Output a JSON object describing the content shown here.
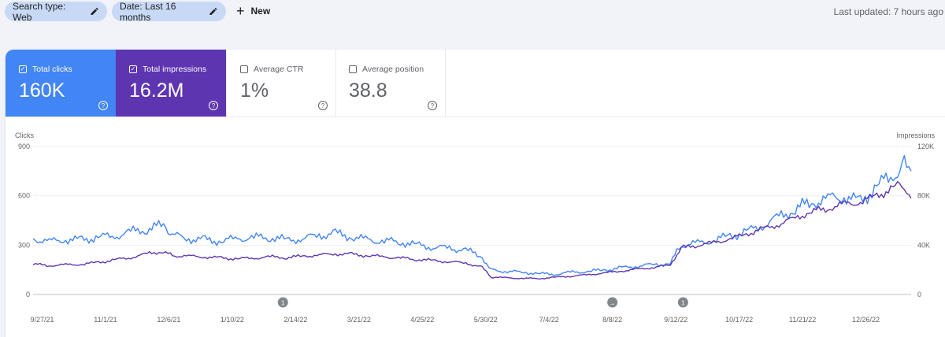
{
  "filters": {
    "search_type": "Search type: Web",
    "date": "Date: Last 16 months",
    "new": "New",
    "pencil_icon": "pencil-icon",
    "plus_icon": "plus-icon"
  },
  "last_updated": "Last updated: 7 hours ago",
  "metrics": [
    {
      "label": "Total clicks",
      "value": "160K",
      "checked": true,
      "color": "#4285f4"
    },
    {
      "label": "Total impressions",
      "value": "16.2M",
      "checked": true,
      "color": "#5e35b1"
    },
    {
      "label": "Average CTR",
      "value": "1%",
      "checked": false
    },
    {
      "label": "Average position",
      "value": "38.8",
      "checked": false
    }
  ],
  "chart_data": {
    "type": "line",
    "ylabel": "Clicks",
    "y2label": "Impressions",
    "ylim": [
      0,
      900
    ],
    "y2lim": [
      0,
      120000
    ],
    "yticks": [
      "900",
      "600",
      "300",
      "0"
    ],
    "y2ticks": [
      "120K",
      "80K",
      "40K",
      "0"
    ],
    "xticks": [
      "9/27/21",
      "11/1/21",
      "12/6/21",
      "1/10/22",
      "2/14/22",
      "3/21/22",
      "4/25/22",
      "5/30/22",
      "7/4/22",
      "8/8/22",
      "9/12/22",
      "10/17/22",
      "11/21/22",
      "12/26/22"
    ],
    "x_range": [
      "9/22/21",
      "1/20/23"
    ],
    "annotations": [
      {
        "date": "2/7/22",
        "label": "1"
      },
      {
        "date": "8/8/22",
        "label": "→"
      },
      {
        "date": "9/16/22",
        "label": "1"
      }
    ],
    "series": [
      {
        "name": "Clicks",
        "axis": "left",
        "color": "#4285f4",
        "points": [
          [
            "9/22/21",
            340
          ],
          [
            "10/1/21",
            320
          ],
          [
            "10/10/21",
            335
          ],
          [
            "10/19/21",
            330
          ],
          [
            "10/28/21",
            350
          ],
          [
            "11/6/21",
            355
          ],
          [
            "11/15/21",
            380
          ],
          [
            "11/24/21",
            400
          ],
          [
            "12/3/21",
            420
          ],
          [
            "12/8/21",
            360
          ],
          [
            "12/17/21",
            340
          ],
          [
            "12/26/21",
            330
          ],
          [
            "1/4/22",
            325
          ],
          [
            "1/13/22",
            340
          ],
          [
            "1/22/22",
            345
          ],
          [
            "1/31/22",
            350
          ],
          [
            "2/9/22",
            330
          ],
          [
            "2/18/22",
            340
          ],
          [
            "2/27/22",
            360
          ],
          [
            "3/8/22",
            370
          ],
          [
            "3/17/22",
            350
          ],
          [
            "3/26/22",
            330
          ],
          [
            "4/4/22",
            325
          ],
          [
            "4/13/22",
            320
          ],
          [
            "4/22/22",
            300
          ],
          [
            "5/1/22",
            290
          ],
          [
            "5/10/22",
            280
          ],
          [
            "5/19/22",
            270
          ],
          [
            "5/28/22",
            230
          ],
          [
            "6/2/22",
            150
          ],
          [
            "6/11/22",
            140
          ],
          [
            "6/20/22",
            135
          ],
          [
            "6/29/22",
            125
          ],
          [
            "7/8/22",
            125
          ],
          [
            "7/17/22",
            135
          ],
          [
            "7/26/22",
            140
          ],
          [
            "8/4/22",
            150
          ],
          [
            "8/13/22",
            160
          ],
          [
            "8/22/22",
            175
          ],
          [
            "8/31/22",
            180
          ],
          [
            "9/9/22",
            190
          ],
          [
            "9/15/22",
            300
          ],
          [
            "9/24/22",
            310
          ],
          [
            "10/3/22",
            330
          ],
          [
            "10/12/22",
            355
          ],
          [
            "10/21/22",
            380
          ],
          [
            "10/30/22",
            420
          ],
          [
            "11/8/22",
            470
          ],
          [
            "11/17/22",
            520
          ],
          [
            "11/26/22",
            560
          ],
          [
            "12/5/22",
            580
          ],
          [
            "12/14/22",
            600
          ],
          [
            "12/23/22",
            560
          ],
          [
            "1/1/23",
            660
          ],
          [
            "1/10/23",
            720
          ],
          [
            "1/15/23",
            790
          ],
          [
            "1/20/23",
            750
          ]
        ]
      },
      {
        "name": "Impressions",
        "axis": "right",
        "color": "#5e35b1",
        "points": [
          [
            "9/22/21",
            24500
          ],
          [
            "10/1/21",
            23500
          ],
          [
            "10/10/21",
            24000
          ],
          [
            "10/19/21",
            24500
          ],
          [
            "10/28/21",
            26000
          ],
          [
            "11/6/21",
            28000
          ],
          [
            "11/15/21",
            30000
          ],
          [
            "11/24/21",
            33000
          ],
          [
            "12/3/21",
            35000
          ],
          [
            "12/8/21",
            31500
          ],
          [
            "12/17/21",
            31000
          ],
          [
            "12/26/21",
            30500
          ],
          [
            "1/4/22",
            29500
          ],
          [
            "1/13/22",
            29000
          ],
          [
            "1/22/22",
            29500
          ],
          [
            "1/31/22",
            30500
          ],
          [
            "2/9/22",
            30000
          ],
          [
            "2/18/22",
            31000
          ],
          [
            "2/27/22",
            32000
          ],
          [
            "3/8/22",
            33000
          ],
          [
            "3/17/22",
            32500
          ],
          [
            "3/26/22",
            31500
          ],
          [
            "4/4/22",
            30500
          ],
          [
            "4/13/22",
            29500
          ],
          [
            "4/22/22",
            28500
          ],
          [
            "5/1/22",
            27500
          ],
          [
            "5/10/22",
            26500
          ],
          [
            "5/19/22",
            25500
          ],
          [
            "5/28/22",
            22000
          ],
          [
            "6/2/22",
            14000
          ],
          [
            "6/11/22",
            13500
          ],
          [
            "6/20/22",
            13000
          ],
          [
            "6/29/22",
            13000
          ],
          [
            "7/8/22",
            14000
          ],
          [
            "7/17/22",
            15000
          ],
          [
            "7/26/22",
            16000
          ],
          [
            "8/4/22",
            17500
          ],
          [
            "8/13/22",
            19000
          ],
          [
            "8/22/22",
            20500
          ],
          [
            "8/31/22",
            22000
          ],
          [
            "9/9/22",
            24000
          ],
          [
            "9/15/22",
            38000
          ],
          [
            "9/24/22",
            40000
          ],
          [
            "10/3/22",
            42000
          ],
          [
            "10/12/22",
            45000
          ],
          [
            "10/21/22",
            49000
          ],
          [
            "10/30/22",
            53000
          ],
          [
            "11/8/22",
            57000
          ],
          [
            "11/17/22",
            62000
          ],
          [
            "11/26/22",
            67000
          ],
          [
            "12/5/22",
            70000
          ],
          [
            "12/14/22",
            73000
          ],
          [
            "12/23/22",
            75000
          ],
          [
            "1/1/23",
            80000
          ],
          [
            "1/10/23",
            86000
          ],
          [
            "1/15/23",
            90000
          ],
          [
            "1/20/23",
            78000
          ]
        ]
      }
    ]
  }
}
